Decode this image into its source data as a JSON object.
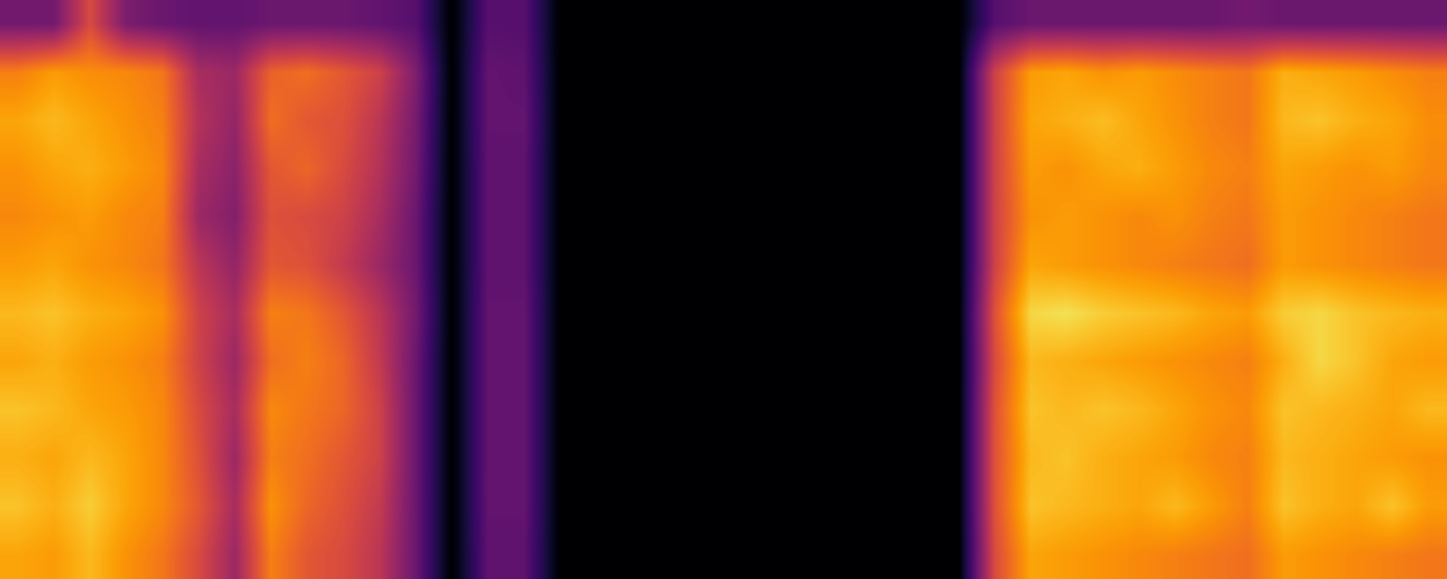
{
  "chart_data": {
    "type": "heatmap",
    "tick_labels": false,
    "grid": false,
    "color_range": [
      0,
      1
    ],
    "cells": [
      [
        0.32,
        0.32,
        0.58,
        0.34,
        0.3,
        0.28,
        0.28,
        0.3,
        0.3,
        0.3,
        0.28,
        0.25,
        0,
        0.25,
        0.25,
        0,
        0,
        0,
        0,
        0,
        0,
        0,
        0,
        0,
        0,
        0,
        0,
        0.25,
        0.3,
        0.3,
        0.3,
        0.3,
        0.3,
        0.3,
        0.32,
        0.3,
        0.3,
        0.3,
        0.3,
        0.3
      ],
      [
        0.72,
        0.78,
        0.75,
        0.74,
        0.7,
        0.45,
        0.42,
        0.65,
        0.68,
        0.62,
        0.55,
        0.35,
        0,
        0.28,
        0.27,
        0,
        0,
        0,
        0,
        0,
        0,
        0,
        0,
        0,
        0,
        0,
        0,
        0.55,
        0.78,
        0.8,
        0.76,
        0.78,
        0.75,
        0.72,
        0.7,
        0.82,
        0.8,
        0.78,
        0.75,
        0.72
      ],
      [
        0.8,
        0.84,
        0.8,
        0.76,
        0.72,
        0.48,
        0.4,
        0.68,
        0.62,
        0.6,
        0.5,
        0.33,
        0,
        0.28,
        0.28,
        0,
        0,
        0,
        0,
        0,
        0,
        0,
        0,
        0,
        0,
        0,
        0,
        0.55,
        0.8,
        0.82,
        0.85,
        0.8,
        0.76,
        0.72,
        0.7,
        0.84,
        0.86,
        0.82,
        0.8,
        0.75
      ],
      [
        0.76,
        0.8,
        0.82,
        0.78,
        0.74,
        0.45,
        0.38,
        0.62,
        0.66,
        0.58,
        0.48,
        0.32,
        0,
        0.27,
        0.27,
        0,
        0,
        0,
        0,
        0,
        0,
        0,
        0,
        0,
        0,
        0,
        0,
        0.55,
        0.78,
        0.76,
        0.8,
        0.82,
        0.78,
        0.74,
        0.72,
        0.8,
        0.78,
        0.76,
        0.78,
        0.74
      ],
      [
        0.74,
        0.76,
        0.78,
        0.74,
        0.72,
        0.42,
        0.36,
        0.6,
        0.58,
        0.55,
        0.45,
        0.3,
        0,
        0.27,
        0.27,
        0,
        0,
        0,
        0,
        0,
        0,
        0,
        0,
        0,
        0,
        0,
        0,
        0.55,
        0.76,
        0.78,
        0.76,
        0.74,
        0.76,
        0.72,
        0.7,
        0.78,
        0.76,
        0.74,
        0.72,
        0.7
      ],
      [
        0.78,
        0.8,
        0.76,
        0.74,
        0.7,
        0.5,
        0.4,
        0.62,
        0.6,
        0.52,
        0.42,
        0.3,
        0,
        0.27,
        0.27,
        0,
        0,
        0,
        0,
        0,
        0,
        0,
        0,
        0,
        0,
        0,
        0,
        0.55,
        0.8,
        0.78,
        0.76,
        0.74,
        0.72,
        0.7,
        0.68,
        0.78,
        0.76,
        0.74,
        0.72,
        0.7
      ],
      [
        0.84,
        0.86,
        0.82,
        0.8,
        0.76,
        0.55,
        0.45,
        0.72,
        0.7,
        0.62,
        0.5,
        0.32,
        0,
        0.28,
        0.28,
        0,
        0,
        0,
        0,
        0,
        0,
        0,
        0,
        0,
        0,
        0,
        0,
        0.6,
        0.9,
        0.92,
        0.88,
        0.86,
        0.84,
        0.8,
        0.78,
        0.88,
        0.9,
        0.86,
        0.84,
        0.82
      ],
      [
        0.8,
        0.82,
        0.78,
        0.76,
        0.72,
        0.55,
        0.42,
        0.68,
        0.72,
        0.66,
        0.52,
        0.3,
        0,
        0.28,
        0.28,
        0,
        0,
        0,
        0,
        0,
        0,
        0,
        0,
        0,
        0,
        0,
        0,
        0.58,
        0.84,
        0.82,
        0.8,
        0.78,
        0.76,
        0.74,
        0.72,
        0.82,
        0.9,
        0.86,
        0.8,
        0.78
      ],
      [
        0.86,
        0.84,
        0.8,
        0.78,
        0.74,
        0.58,
        0.45,
        0.74,
        0.7,
        0.66,
        0.55,
        0.3,
        0,
        0.28,
        0.28,
        0,
        0,
        0,
        0,
        0,
        0,
        0,
        0,
        0,
        0,
        0,
        0,
        0.6,
        0.86,
        0.84,
        0.86,
        0.84,
        0.8,
        0.76,
        0.74,
        0.86,
        0.84,
        0.82,
        0.8,
        0.84
      ],
      [
        0.82,
        0.8,
        0.84,
        0.8,
        0.74,
        0.6,
        0.42,
        0.72,
        0.68,
        0.62,
        0.55,
        0.3,
        0,
        0.28,
        0.28,
        0,
        0,
        0,
        0,
        0,
        0,
        0,
        0,
        0,
        0,
        0,
        0,
        0.6,
        0.84,
        0.86,
        0.82,
        0.8,
        0.78,
        0.74,
        0.72,
        0.84,
        0.82,
        0.8,
        0.78,
        0.76
      ],
      [
        0.86,
        0.82,
        0.88,
        0.8,
        0.74,
        0.62,
        0.45,
        0.76,
        0.66,
        0.6,
        0.52,
        0.3,
        0,
        0.28,
        0.28,
        0,
        0,
        0,
        0,
        0,
        0,
        0,
        0,
        0,
        0,
        0,
        0,
        0.6,
        0.86,
        0.84,
        0.82,
        0.8,
        0.84,
        0.78,
        0.72,
        0.86,
        0.82,
        0.8,
        0.86,
        0.78
      ],
      [
        0.8,
        0.78,
        0.84,
        0.76,
        0.7,
        0.58,
        0.42,
        0.72,
        0.62,
        0.58,
        0.5,
        0.3,
        0,
        0.27,
        0.27,
        0,
        0,
        0,
        0,
        0,
        0,
        0,
        0,
        0,
        0,
        0,
        0,
        0.58,
        0.8,
        0.78,
        0.76,
        0.74,
        0.72,
        0.7,
        0.68,
        0.78,
        0.76,
        0.74,
        0.72,
        0.7
      ]
    ]
  }
}
